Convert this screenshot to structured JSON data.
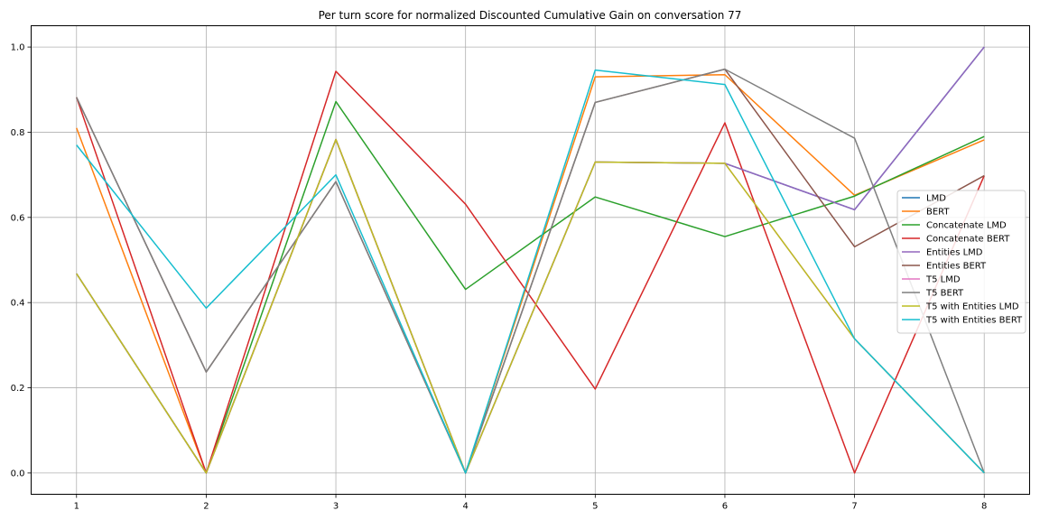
{
  "chart_data": {
    "type": "line",
    "title": "Per turn score for normalized Discounted Cumulative Gain on conversation 77",
    "xlabel": "",
    "ylabel": "",
    "x": [
      1,
      2,
      3,
      4,
      5,
      6,
      7,
      8
    ],
    "xlim": [
      0.65,
      8.35
    ],
    "ylim": [
      -0.05,
      1.05
    ],
    "xticks": [
      1,
      2,
      3,
      4,
      5,
      6,
      7,
      8
    ],
    "yticks": [
      0.0,
      0.2,
      0.4,
      0.6,
      0.8,
      1.0
    ],
    "ytick_labels": [
      "0.0",
      "0.2",
      "0.4",
      "0.6",
      "0.8",
      "1.0"
    ],
    "grid": true,
    "legend_position": "center-right",
    "series": [
      {
        "name": "LMD",
        "color": "#1f77b4",
        "values": [
          0.468,
          0.0,
          0.783,
          0.0,
          0.73,
          0.727,
          0.618,
          1.0
        ]
      },
      {
        "name": "BERT",
        "color": "#ff7f0e",
        "values": [
          0.81,
          0.0,
          0.783,
          0.0,
          0.93,
          0.935,
          0.652,
          0.782
        ]
      },
      {
        "name": "Concatenate LMD",
        "color": "#2ca02c",
        "values": [
          0.468,
          0.0,
          0.872,
          0.431,
          0.648,
          0.555,
          0.65,
          0.79
        ]
      },
      {
        "name": "Concatenate BERT",
        "color": "#d62728",
        "values": [
          0.882,
          0.0,
          0.943,
          0.631,
          0.197,
          0.822,
          0.0,
          0.698
        ]
      },
      {
        "name": "Entities LMD",
        "color": "#9467bd",
        "values": [
          0.468,
          0.0,
          0.783,
          0.0,
          0.73,
          0.727,
          0.618,
          1.0
        ]
      },
      {
        "name": "Entities BERT",
        "color": "#8c564b",
        "values": [
          0.882,
          0.237,
          0.684,
          0.0,
          0.87,
          0.948,
          0.531,
          0.698
        ]
      },
      {
        "name": "T5 LMD",
        "color": "#e377c2",
        "values": [
          0.468,
          0.0,
          0.783,
          0.0,
          0.73,
          0.727,
          0.315,
          0.0
        ]
      },
      {
        "name": "T5 BERT",
        "color": "#7f7f7f",
        "values": [
          0.882,
          0.237,
          0.684,
          0.0,
          0.87,
          0.948,
          0.786,
          0.0
        ]
      },
      {
        "name": "T5 with Entities LMD",
        "color": "#bcbd22",
        "values": [
          0.468,
          0.0,
          0.783,
          0.0,
          0.73,
          0.727,
          0.315,
          0.0
        ]
      },
      {
        "name": "T5 with Entities BERT",
        "color": "#17becf",
        "values": [
          0.77,
          0.387,
          0.7,
          0.0,
          0.946,
          0.912,
          0.315,
          0.0
        ]
      }
    ]
  }
}
